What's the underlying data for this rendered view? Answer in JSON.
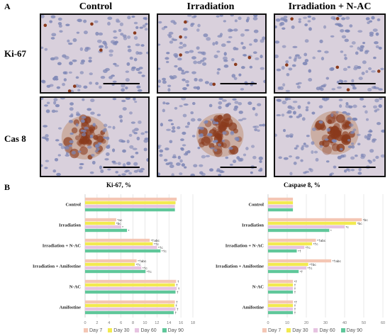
{
  "figure": {
    "panel_a_label": "A",
    "panel_b_label": "B",
    "column_headers": [
      "Control",
      "Irradiation",
      "Irradiation + N-AC"
    ],
    "row_headers": [
      "Ki-67",
      "Cas 8"
    ]
  },
  "colors": {
    "day7": "#f4c6b4",
    "day30": "#f2ea4f",
    "day60": "#e6c3e1",
    "day90": "#5fc79a",
    "tissue_bg": "#d9d0dc",
    "nucleus": "#7d86b5",
    "stain": "#8a3a1c"
  },
  "chart_data": [
    {
      "type": "bar",
      "orientation": "horizontal",
      "title": "Ki-67, %",
      "categories": [
        "Control",
        "Irradiation",
        "Irradiation + N-AC",
        "Irradiation + Amifostine",
        "N-AC",
        "Amifostine"
      ],
      "xlim": [
        0,
        18
      ],
      "xticks": [
        "0",
        "2",
        "4",
        "6",
        "8",
        "10",
        "12",
        "14",
        "16",
        "18"
      ],
      "grid": true,
      "legend_position": "bottom",
      "series": [
        {
          "name": "Day 7",
          "values": [
            15.3,
            5.2,
            10.8,
            8.6,
            15.2,
            15.0
          ]
        },
        {
          "name": "Day 30",
          "values": [
            15.1,
            5.0,
            11.3,
            8.3,
            15.0,
            14.9
          ]
        },
        {
          "name": "Day 60",
          "values": [
            15.0,
            6.0,
            12.0,
            9.4,
            15.3,
            15.1
          ]
        },
        {
          "name": "Day 90",
          "values": [
            15.0,
            7.0,
            12.6,
            10.1,
            15.1,
            14.8
          ]
        }
      ],
      "annotations": [
        [
          "",
          "",
          "",
          ""
        ],
        [
          "*ac",
          "*bc",
          "*",
          "*"
        ],
        [
          "*†abc",
          "*†c",
          "*†c",
          "*†c"
        ],
        [
          "*†abc",
          "*†c",
          "*†c",
          "*†c"
        ],
        [
          "†",
          "†",
          "†",
          "†"
        ],
        [
          "†",
          "†",
          "†",
          "†"
        ]
      ]
    },
    {
      "type": "bar",
      "orientation": "horizontal",
      "title": "Caspase 8, %",
      "categories": [
        "Control",
        "Irradiation",
        "Irradiation + N-AC",
        "Irradiation + Amifostine",
        "N-AC",
        "Amifostine"
      ],
      "xlim": [
        0,
        60
      ],
      "xticks": [
        "0",
        "10",
        "20",
        "30",
        "40",
        "50",
        "60"
      ],
      "grid": true,
      "legend_position": "bottom",
      "series": [
        {
          "name": "Day 7",
          "values": [
            13,
            49,
            25,
            33,
            13,
            13
          ]
        },
        {
          "name": "Day 30",
          "values": [
            13,
            46,
            23,
            21,
            13,
            13
          ]
        },
        {
          "name": "Day 60",
          "values": [
            13,
            40,
            19,
            20,
            13,
            13
          ]
        },
        {
          "name": "Day 90",
          "values": [
            13,
            32,
            15,
            16,
            13,
            13
          ]
        }
      ],
      "annotations": [
        [
          "",
          "",
          "",
          ""
        ],
        [
          "*bc",
          "*bc",
          "*c",
          "*"
        ],
        [
          "*†abc",
          "*†c",
          "*†c",
          "*†"
        ],
        [
          "*†abc",
          "*†bc",
          "*†c",
          "*†"
        ],
        [
          "*†",
          "†",
          "†",
          "†"
        ],
        [
          "*†",
          "†",
          "†",
          "†"
        ]
      ]
    }
  ]
}
